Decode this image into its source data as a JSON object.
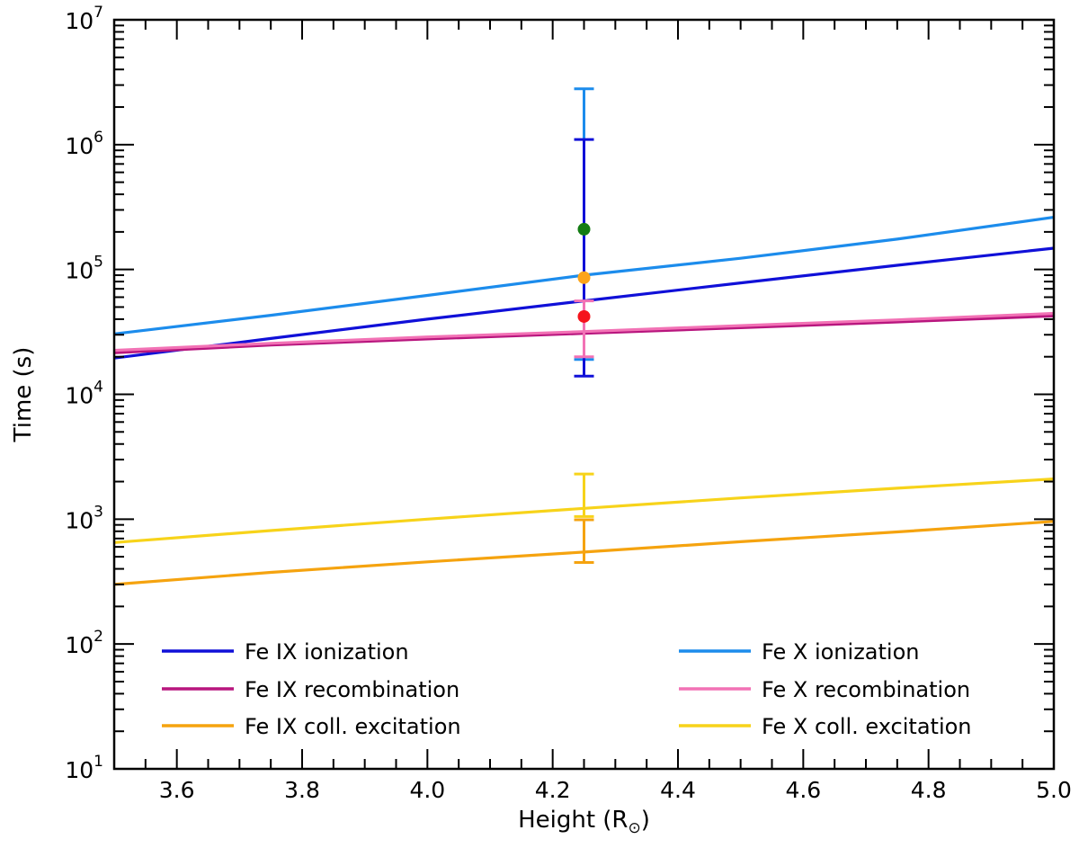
{
  "chart_data": {
    "type": "line",
    "xlabel": "Height (R",
    "xlabel_sub": "⊙",
    "xlabel_close": ")",
    "ylabel": "Time (s)",
    "xlim": [
      3.5,
      5.0
    ],
    "ylim": [
      10,
      10000000
    ],
    "yscale": "log",
    "x_ticks": [
      3.6,
      3.8,
      4.0,
      4.2,
      4.4,
      4.6,
      4.8,
      5.0
    ],
    "x_tick_labels": [
      "3.6",
      "3.8",
      "4.0",
      "4.2",
      "4.4",
      "4.6",
      "4.8",
      "5.0"
    ],
    "y_ticks": [
      10,
      100,
      1000,
      10000,
      100000,
      1000000,
      10000000
    ],
    "y_tick_bases": [
      "10",
      "10",
      "10",
      "10",
      "10",
      "10",
      "10"
    ],
    "y_tick_exps": [
      "1",
      "2",
      "3",
      "4",
      "5",
      "6",
      "7"
    ],
    "legend_position": "bottom",
    "series": [
      {
        "name": "Fe IX ionization",
        "color": "#1010d8",
        "x": [
          3.5,
          3.75,
          4.0,
          4.25,
          4.5,
          4.75,
          5.0
        ],
        "values": [
          19500,
          28000,
          40000,
          56000,
          78000,
          108000,
          148000
        ]
      },
      {
        "name": "Fe IX recombination",
        "color": "#b8167e",
        "x": [
          3.5,
          3.75,
          4.0,
          4.25,
          4.5,
          4.75,
          5.0
        ],
        "values": [
          21500,
          24800,
          27800,
          30800,
          34200,
          38000,
          42500
        ]
      },
      {
        "name": "Fe IX coll. excitation",
        "color": "#f5a30f",
        "x": [
          3.5,
          3.75,
          4.0,
          4.25,
          4.5,
          4.75,
          5.0
        ],
        "values": [
          300,
          375,
          455,
          545,
          660,
          790,
          960
        ]
      },
      {
        "name": "Fe X ionization",
        "color": "#1c8cec",
        "x": [
          3.5,
          3.75,
          4.0,
          4.25,
          4.5,
          4.75,
          5.0
        ],
        "values": [
          30500,
          43000,
          62000,
          90000,
          123000,
          175000,
          262000
        ]
      },
      {
        "name": "Fe X recombination",
        "color": "#f272b5",
        "x": [
          3.5,
          3.75,
          4.0,
          4.25,
          4.5,
          4.75,
          5.0
        ],
        "values": [
          22500,
          25600,
          28800,
          31800,
          35500,
          39500,
          44500
        ]
      },
      {
        "name": "Fe X coll. excitation",
        "color": "#f7d31a",
        "x": [
          3.5,
          3.75,
          4.0,
          4.25,
          4.5,
          4.75,
          5.0
        ],
        "values": [
          650,
          810,
          1000,
          1220,
          1480,
          1770,
          2100
        ]
      }
    ],
    "error_bars": [
      {
        "name": "Fe X ionization error",
        "x": 4.25,
        "low": 19000,
        "high": 2800000,
        "color": "#1c8cec"
      },
      {
        "name": "Fe IX ionization error",
        "x": 4.25,
        "low": 14000,
        "high": 1100000,
        "color": "#1010d8"
      },
      {
        "name": "Fe X recombination error",
        "x": 4.25,
        "low": 20000,
        "high": 56000,
        "color": "#f272b5"
      },
      {
        "name": "Fe X coll. excitation error",
        "x": 4.25,
        "low": 1050,
        "high": 2300,
        "color": "#f7d31a"
      },
      {
        "name": "Fe IX coll. excitation error",
        "x": 4.25,
        "low": 450,
        "high": 990,
        "color": "#f5a30f"
      }
    ],
    "points": [
      {
        "name": "green point",
        "x": 4.25,
        "y": 210000,
        "color": "#137c13"
      },
      {
        "name": "orange point",
        "x": 4.25,
        "y": 86000,
        "color": "#fca41a"
      },
      {
        "name": "red point",
        "x": 4.25,
        "y": 42000,
        "color": "#f5141c"
      }
    ]
  }
}
